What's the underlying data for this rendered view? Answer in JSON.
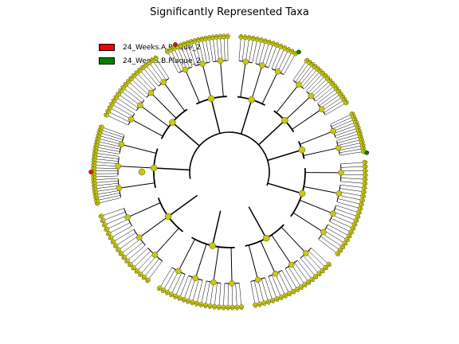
{
  "title": "Significantly Represented Taxa",
  "legend": [
    {
      "label": "24_Weeks.A.Plaque_2",
      "color": "#ff0000"
    },
    {
      "label": "24_Weeks.B.Plaque_2",
      "color": "#008000"
    }
  ],
  "colors": {
    "node_fill": "#c8c814",
    "node_stroke": "#555500",
    "edge": "#000000"
  },
  "highlights": [
    {
      "group": "24_Weeks.A.Plaque_2",
      "color": "#ff0000",
      "positions": [
        "left",
        "top"
      ]
    },
    {
      "group": "24_Weeks.B.Plaque_2",
      "color": "#008000",
      "positions": [
        "top-right",
        "right"
      ]
    }
  ]
}
